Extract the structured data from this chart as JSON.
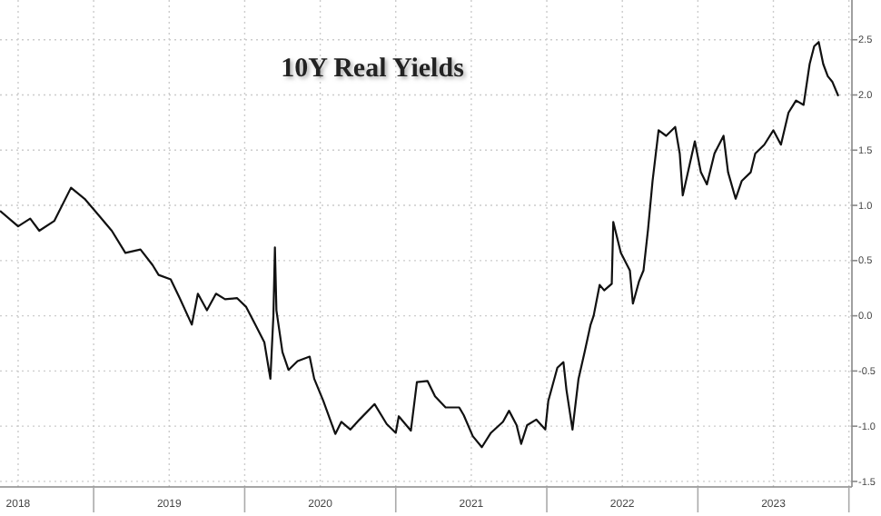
{
  "chart_data": {
    "type": "line",
    "title": "10Y Real Yields",
    "x": [
      2018.38,
      2018.5,
      2018.58,
      2018.64,
      2018.74,
      2018.85,
      2018.94,
      2019.04,
      2019.12,
      2019.21,
      2019.31,
      2019.39,
      2019.43,
      2019.51,
      2019.57,
      2019.65,
      2019.69,
      2019.75,
      2019.81,
      2019.87,
      2019.95,
      2020.01,
      2020.07,
      2020.13,
      2020.17,
      2020.19,
      2020.2,
      2020.21,
      2020.25,
      2020.29,
      2020.35,
      2020.43,
      2020.46,
      2020.52,
      2020.6,
      2020.64,
      2020.7,
      2020.76,
      2020.86,
      2020.94,
      2021.0,
      2021.02,
      2021.1,
      2021.14,
      2021.21,
      2021.26,
      2021.33,
      2021.42,
      2021.45,
      2021.51,
      2021.57,
      2021.63,
      2021.71,
      2021.75,
      2021.8,
      2021.83,
      2021.87,
      2021.93,
      2021.99,
      2022.01,
      2022.07,
      2022.11,
      2022.13,
      2022.17,
      2022.21,
      2022.25,
      2022.29,
      2022.31,
      2022.35,
      2022.38,
      2022.43,
      2022.44,
      2022.49,
      2022.55,
      2022.57,
      2022.61,
      2022.64,
      2022.67,
      2022.7,
      2022.74,
      2022.79,
      2022.85,
      2022.88,
      2022.9,
      2022.98,
      2023.02,
      2023.06,
      2023.11,
      2023.17,
      2023.2,
      2023.25,
      2023.29,
      2023.35,
      2023.38,
      2023.44,
      2023.5,
      2023.55,
      2023.6,
      2023.65,
      2023.7,
      2023.74,
      2023.77,
      2023.8,
      2023.83,
      2023.86,
      2023.89,
      2023.93
    ],
    "series": [
      {
        "color": "#111111",
        "values": [
          0.95,
          0.81,
          0.88,
          0.77,
          0.86,
          1.16,
          1.06,
          0.9,
          0.77,
          0.57,
          0.6,
          0.46,
          0.37,
          0.33,
          0.16,
          -0.08,
          0.2,
          0.05,
          0.2,
          0.15,
          0.16,
          0.08,
          -0.08,
          -0.24,
          -0.57,
          0.0,
          0.62,
          0.05,
          -0.33,
          -0.49,
          -0.41,
          -0.37,
          -0.57,
          -0.77,
          -1.07,
          -0.96,
          -1.03,
          -0.94,
          -0.8,
          -0.98,
          -1.06,
          -0.91,
          -1.04,
          -0.6,
          -0.59,
          -0.73,
          -0.83,
          -0.83,
          -0.9,
          -1.09,
          -1.19,
          -1.06,
          -0.96,
          -0.86,
          -0.99,
          -1.16,
          -0.99,
          -0.94,
          -1.03,
          -0.77,
          -0.47,
          -0.42,
          -0.67,
          -1.03,
          -0.57,
          -0.33,
          -0.08,
          0.0,
          0.28,
          0.23,
          0.29,
          0.85,
          0.57,
          0.41,
          0.11,
          0.31,
          0.41,
          0.78,
          1.22,
          1.68,
          1.63,
          1.71,
          1.47,
          1.09,
          1.58,
          1.3,
          1.19,
          1.47,
          1.63,
          1.3,
          1.06,
          1.22,
          1.3,
          1.47,
          1.55,
          1.68,
          1.55,
          1.84,
          1.95,
          1.91,
          2.28,
          2.44,
          2.48,
          2.28,
          2.17,
          2.12,
          1.99
        ]
      }
    ],
    "xlim": [
      2018.38,
      2024.02
    ],
    "xticks": [
      {
        "value": 2018.5,
        "label": "2018"
      },
      {
        "value": 2019,
        "label": null
      },
      {
        "value": 2019.5,
        "label": "2019"
      },
      {
        "value": 2020,
        "label": null
      },
      {
        "value": 2020.5,
        "label": "2020"
      },
      {
        "value": 2021,
        "label": null
      },
      {
        "value": 2021.5,
        "label": "2021"
      },
      {
        "value": 2022,
        "label": null
      },
      {
        "value": 2022.5,
        "label": "2022"
      },
      {
        "value": 2023,
        "label": null
      },
      {
        "value": 2023.5,
        "label": "2023"
      },
      {
        "value": 2024,
        "label": null
      }
    ],
    "ylim": [
      -1.55,
      2.86
    ],
    "yticks": [
      {
        "value": -1.5,
        "label": "-1.5"
      },
      {
        "value": -1,
        "label": "-1.0"
      },
      {
        "value": -0.5,
        "label": "-0.5"
      },
      {
        "value": 0,
        "label": "0.0"
      },
      {
        "value": 0.5,
        "label": "0.5"
      },
      {
        "value": 1,
        "label": "1.0"
      },
      {
        "value": 1.5,
        "label": "1.5"
      },
      {
        "value": 2,
        "label": "2.0"
      },
      {
        "value": 2.5,
        "label": "2.5"
      }
    ],
    "grid": true,
    "marker": "none",
    "line_style": "solid"
  }
}
